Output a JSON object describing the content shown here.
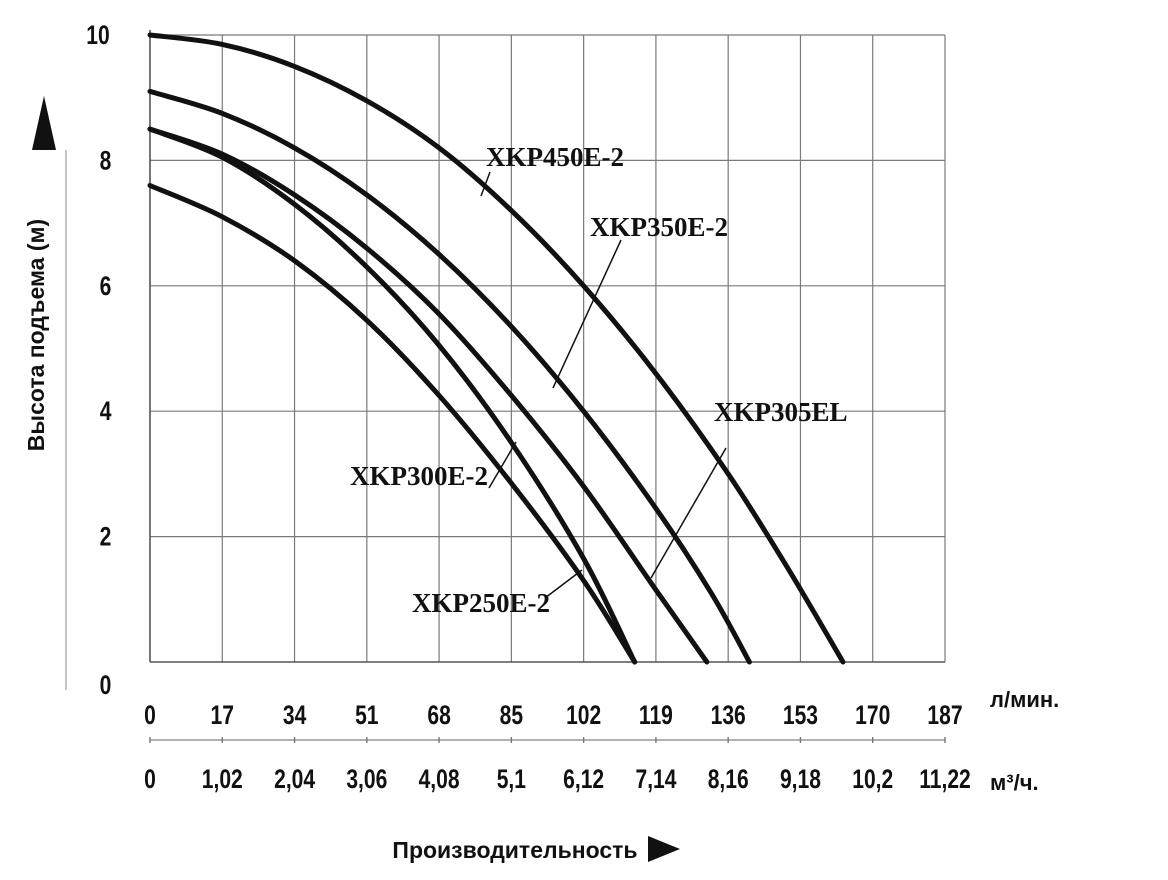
{
  "chart_data": {
    "type": "line",
    "title": "",
    "ylabel": "Высота подъема (м)",
    "xlabel": "Производительность",
    "x_unit_primary": "л/мин.",
    "x_unit_secondary": "м³/ч.",
    "xlim": [
      0,
      187
    ],
    "ylim": [
      0,
      10
    ],
    "grid": true,
    "y_ticks": [
      "0",
      "2",
      "4",
      "6",
      "8",
      "10"
    ],
    "x_ticks_primary": [
      "0",
      "17",
      "34",
      "51",
      "68",
      "85",
      "102",
      "119",
      "136",
      "153",
      "170",
      "187"
    ],
    "x_ticks_secondary": [
      "0",
      "1,02",
      "2,04",
      "3,06",
      "4,08",
      "5,1",
      "6,12",
      "7,14",
      "8,16",
      "9,18",
      "10,2",
      "11,22"
    ],
    "line_color": "#111111",
    "series": [
      {
        "name": "XKP450E-2",
        "x": [
          0,
          17,
          34,
          51,
          68,
          85,
          102,
          119,
          136,
          150,
          163
        ],
        "y": [
          10.0,
          9.85,
          9.5,
          8.95,
          8.2,
          7.2,
          6.0,
          4.6,
          3.0,
          1.5,
          0
        ]
      },
      {
        "name": "XKP350E-2",
        "x": [
          0,
          17,
          34,
          51,
          68,
          85,
          102,
          119,
          132,
          141
        ],
        "y": [
          9.1,
          8.75,
          8.2,
          7.45,
          6.5,
          5.35,
          4.0,
          2.45,
          1.1,
          0
        ]
      },
      {
        "name": "XKP305EL",
        "x": [
          0,
          17,
          34,
          51,
          68,
          85,
          102,
          119,
          131
        ],
        "y": [
          8.5,
          8.1,
          7.45,
          6.6,
          5.55,
          4.25,
          2.8,
          1.15,
          0
        ]
      },
      {
        "name": "XKP300E-2",
        "x": [
          0,
          17,
          34,
          51,
          68,
          85,
          102,
          114
        ],
        "y": [
          8.5,
          8.05,
          7.3,
          6.3,
          5.05,
          3.5,
          1.65,
          0
        ]
      },
      {
        "name": "XKP250E-2",
        "x": [
          0,
          17,
          34,
          51,
          68,
          85,
          102,
          114
        ],
        "y": [
          7.6,
          7.1,
          6.4,
          5.45,
          4.25,
          2.85,
          1.3,
          0
        ]
      }
    ]
  }
}
